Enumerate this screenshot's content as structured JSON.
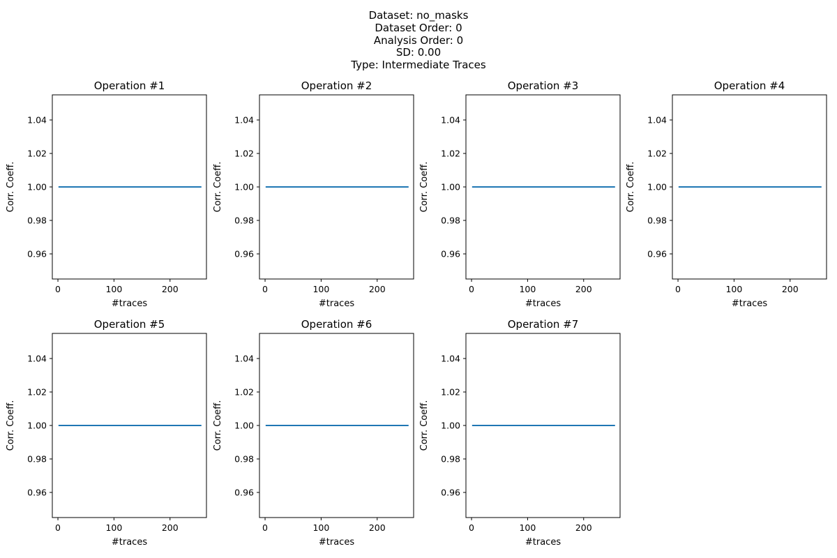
{
  "suptitle": [
    "Dataset: no_masks",
    "Dataset Order: 0",
    "Analysis Order: 0",
    "SD: 0.00",
    "Type: Intermediate Traces"
  ],
  "colors": {
    "series": "#1f77b4",
    "axes": "#000000",
    "background": "#ffffff"
  },
  "chart_data": [
    {
      "type": "line",
      "title": "Operation #1",
      "xlabel": "#traces",
      "ylabel": "Corr. Coeff.",
      "xlim": [
        -10,
        265
      ],
      "ylim": [
        0.945,
        1.055
      ],
      "xticks": [
        0,
        100,
        200
      ],
      "yticks": [
        0.96,
        0.98,
        1.0,
        1.02,
        1.04
      ],
      "ytick_labels": [
        "0.96",
        "0.98",
        "1.00",
        "1.02",
        "1.04"
      ],
      "grid": false,
      "series": [
        {
          "x": [
            1,
            256
          ],
          "y": [
            1.0,
            1.0
          ]
        }
      ]
    },
    {
      "type": "line",
      "title": "Operation #2",
      "xlabel": "#traces",
      "ylabel": "Corr. Coeff.",
      "xlim": [
        -10,
        265
      ],
      "ylim": [
        0.945,
        1.055
      ],
      "xticks": [
        0,
        100,
        200
      ],
      "yticks": [
        0.96,
        0.98,
        1.0,
        1.02,
        1.04
      ],
      "ytick_labels": [
        "0.96",
        "0.98",
        "1.00",
        "1.02",
        "1.04"
      ],
      "grid": false,
      "series": [
        {
          "x": [
            1,
            256
          ],
          "y": [
            1.0,
            1.0
          ]
        }
      ]
    },
    {
      "type": "line",
      "title": "Operation #3",
      "xlabel": "#traces",
      "ylabel": "Corr. Coeff.",
      "xlim": [
        -10,
        265
      ],
      "ylim": [
        0.945,
        1.055
      ],
      "xticks": [
        0,
        100,
        200
      ],
      "yticks": [
        0.96,
        0.98,
        1.0,
        1.02,
        1.04
      ],
      "ytick_labels": [
        "0.96",
        "0.98",
        "1.00",
        "1.02",
        "1.04"
      ],
      "grid": false,
      "series": [
        {
          "x": [
            1,
            256
          ],
          "y": [
            1.0,
            1.0
          ]
        }
      ]
    },
    {
      "type": "line",
      "title": "Operation #4",
      "xlabel": "#traces",
      "ylabel": "Corr. Coeff.",
      "xlim": [
        -10,
        265
      ],
      "ylim": [
        0.945,
        1.055
      ],
      "xticks": [
        0,
        100,
        200
      ],
      "yticks": [
        0.96,
        0.98,
        1.0,
        1.02,
        1.04
      ],
      "ytick_labels": [
        "0.96",
        "0.98",
        "1.00",
        "1.02",
        "1.04"
      ],
      "grid": false,
      "series": [
        {
          "x": [
            1,
            256
          ],
          "y": [
            1.0,
            1.0
          ]
        }
      ]
    },
    {
      "type": "line",
      "title": "Operation #5",
      "xlabel": "#traces",
      "ylabel": "Corr. Coeff.",
      "xlim": [
        -10,
        265
      ],
      "ylim": [
        0.945,
        1.055
      ],
      "xticks": [
        0,
        100,
        200
      ],
      "yticks": [
        0.96,
        0.98,
        1.0,
        1.02,
        1.04
      ],
      "ytick_labels": [
        "0.96",
        "0.98",
        "1.00",
        "1.02",
        "1.04"
      ],
      "grid": false,
      "series": [
        {
          "x": [
            1,
            256
          ],
          "y": [
            1.0,
            1.0
          ]
        }
      ]
    },
    {
      "type": "line",
      "title": "Operation #6",
      "xlabel": "#traces",
      "ylabel": "Corr. Coeff.",
      "xlim": [
        -10,
        265
      ],
      "ylim": [
        0.945,
        1.055
      ],
      "xticks": [
        0,
        100,
        200
      ],
      "yticks": [
        0.96,
        0.98,
        1.0,
        1.02,
        1.04
      ],
      "ytick_labels": [
        "0.96",
        "0.98",
        "1.00",
        "1.02",
        "1.04"
      ],
      "grid": false,
      "series": [
        {
          "x": [
            1,
            256
          ],
          "y": [
            1.0,
            1.0
          ]
        }
      ]
    },
    {
      "type": "line",
      "title": "Operation #7",
      "xlabel": "#traces",
      "ylabel": "Corr. Coeff.",
      "xlim": [
        -10,
        265
      ],
      "ylim": [
        0.945,
        1.055
      ],
      "xticks": [
        0,
        100,
        200
      ],
      "yticks": [
        0.96,
        0.98,
        1.0,
        1.02,
        1.04
      ],
      "ytick_labels": [
        "0.96",
        "0.98",
        "1.00",
        "1.02",
        "1.04"
      ],
      "grid": false,
      "series": [
        {
          "x": [
            1,
            256
          ],
          "y": [
            1.0,
            1.0
          ]
        }
      ]
    }
  ]
}
